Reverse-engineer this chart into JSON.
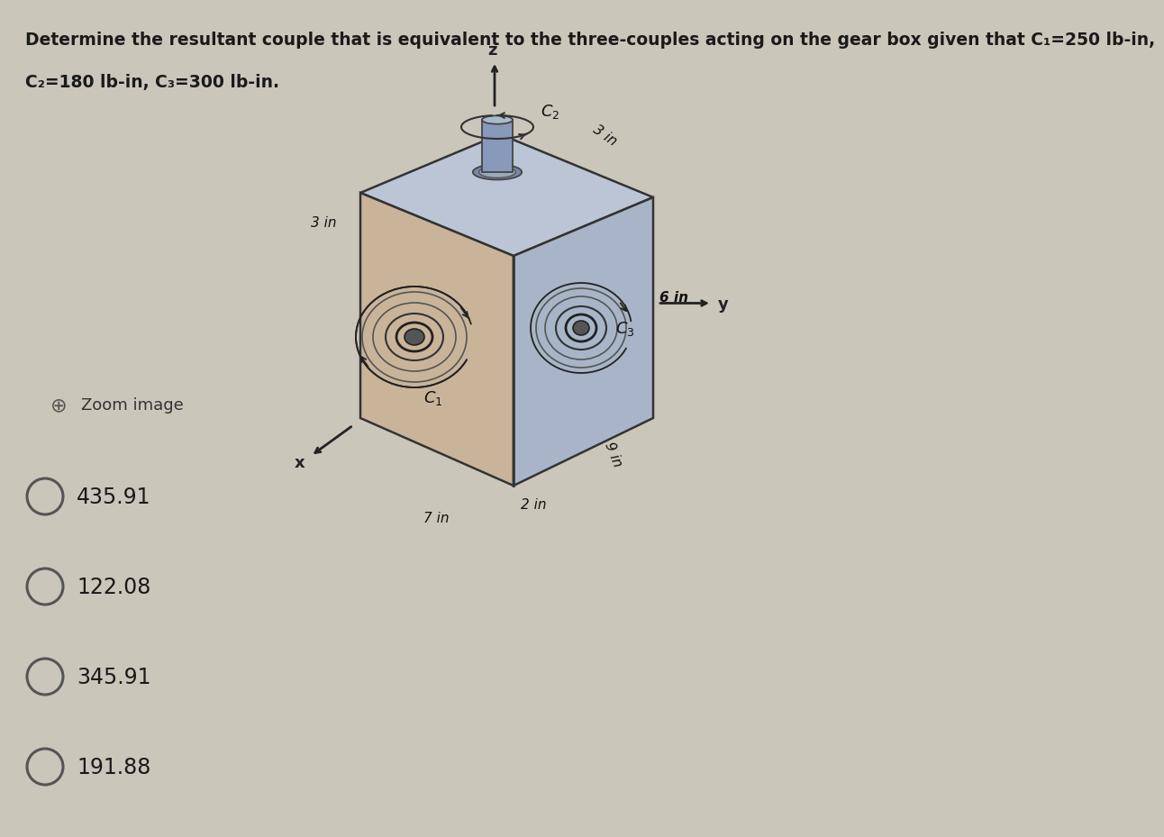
{
  "title_line1": "Determine the resultant couple that is equivalent to the three-couples acting on the gear box given that C₁=250 lb-in,",
  "title_line2": "C₂=180 lb-in, C₃=300 lb-in.",
  "choices": [
    "435.91",
    "122.08",
    "345.91",
    "191.88"
  ],
  "zoom_label": "Zoom image",
  "bg_color": "#cbc6ba",
  "left_face_color": "#c8b8a2",
  "right_face_color": "#b0b8c8",
  "top_face_color": "#c0c8d8",
  "edge_color": "#333333",
  "text_color": "#1a1a1a",
  "title_fontsize": 13.5,
  "choice_fontsize": 17,
  "dim_fontsize": 11,
  "label_fontsize": 13
}
